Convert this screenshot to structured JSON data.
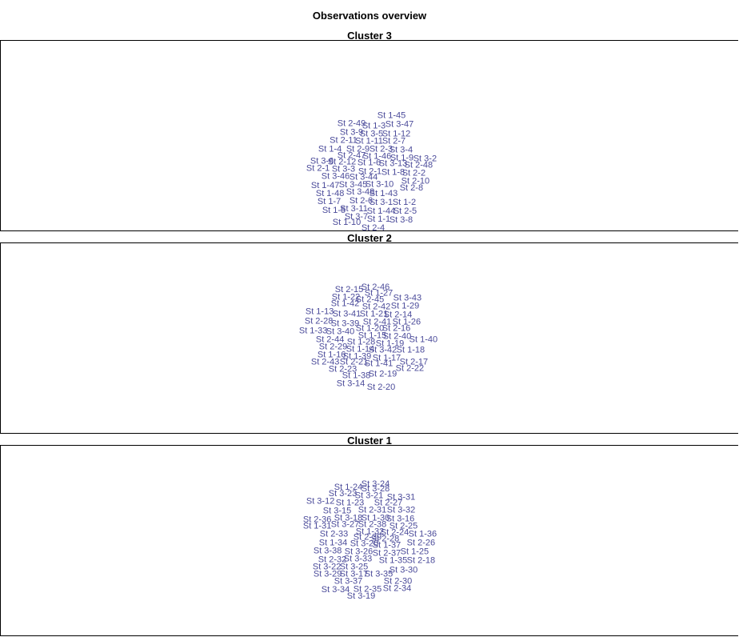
{
  "title": "Observations overview",
  "colors": {
    "label": "#4b4b9a"
  },
  "chart_data": [
    {
      "type": "scatter",
      "title": "Cluster 3",
      "xlim": [
        0,
        924
      ],
      "ylim": [
        0,
        240
      ],
      "points": [
        {
          "label": "St 1-45",
          "x": 490,
          "y": 146
        },
        {
          "label": "St 2-49",
          "x": 440,
          "y": 136
        },
        {
          "label": "St 1-3",
          "x": 468,
          "y": 133
        },
        {
          "label": "St 3-47",
          "x": 500,
          "y": 135
        },
        {
          "label": "St 3-9",
          "x": 440,
          "y": 125
        },
        {
          "label": "St 3-5",
          "x": 465,
          "y": 123
        },
        {
          "label": "St 1-12",
          "x": 496,
          "y": 123
        },
        {
          "label": "St 2-11",
          "x": 430,
          "y": 115
        },
        {
          "label": "St 1-11",
          "x": 462,
          "y": 114
        },
        {
          "label": "St 2-7",
          "x": 493,
          "y": 114
        },
        {
          "label": "St 1-4",
          "x": 413,
          "y": 104
        },
        {
          "label": "St 2-9",
          "x": 448,
          "y": 104
        },
        {
          "label": "St 2-3",
          "x": 477,
          "y": 104
        },
        {
          "label": "St 3-4",
          "x": 502,
          "y": 103
        },
        {
          "label": "St 2-47",
          "x": 440,
          "y": 96
        },
        {
          "label": "St 1-46",
          "x": 472,
          "y": 95
        },
        {
          "label": "St 1-9",
          "x": 503,
          "y": 93
        },
        {
          "label": "St 3-2",
          "x": 532,
          "y": 92
        },
        {
          "label": "St 3-6",
          "x": 403,
          "y": 89
        },
        {
          "label": "St 2-12",
          "x": 428,
          "y": 88
        },
        {
          "label": "St 1-6",
          "x": 462,
          "y": 87
        },
        {
          "label": "St 3-13",
          "x": 492,
          "y": 86
        },
        {
          "label": "St 2-48",
          "x": 524,
          "y": 84
        },
        {
          "label": "St 2-1",
          "x": 398,
          "y": 80
        },
        {
          "label": "St 3-3",
          "x": 430,
          "y": 79
        },
        {
          "label": "St 2-1",
          "x": 463,
          "y": 76
        },
        {
          "label": "St 1-8",
          "x": 492,
          "y": 75
        },
        {
          "label": "St 2-2",
          "x": 518,
          "y": 74
        },
        {
          "label": "St 3-46",
          "x": 420,
          "y": 70
        },
        {
          "label": "St 3-44",
          "x": 455,
          "y": 69
        },
        {
          "label": "St 2-10",
          "x": 520,
          "y": 64
        },
        {
          "label": "St 3-10",
          "x": 475,
          "y": 60
        },
        {
          "label": "St 1-47",
          "x": 407,
          "y": 58
        },
        {
          "label": "St 3-45",
          "x": 442,
          "y": 59
        },
        {
          "label": "St 2-8",
          "x": 515,
          "y": 55
        },
        {
          "label": "St 1-48",
          "x": 413,
          "y": 48
        },
        {
          "label": "St 3-48",
          "x": 451,
          "y": 50
        },
        {
          "label": "St 1-43",
          "x": 480,
          "y": 48
        },
        {
          "label": "St 1-7",
          "x": 412,
          "y": 38
        },
        {
          "label": "St 2-6",
          "x": 452,
          "y": 39
        },
        {
          "label": "St 3-1",
          "x": 477,
          "y": 37
        },
        {
          "label": "St 1-2",
          "x": 506,
          "y": 37
        },
        {
          "label": "St 1-5",
          "x": 418,
          "y": 27
        },
        {
          "label": "St 3-11",
          "x": 443,
          "y": 29
        },
        {
          "label": "St 1-44",
          "x": 477,
          "y": 26
        },
        {
          "label": "St 2-5",
          "x": 507,
          "y": 26
        },
        {
          "label": "St 3-7",
          "x": 446,
          "y": 19
        },
        {
          "label": "St 1-1",
          "x": 474,
          "y": 16
        },
        {
          "label": "St 3-8",
          "x": 502,
          "y": 15
        },
        {
          "label": "St 1-10",
          "x": 434,
          "y": 12
        },
        {
          "label": "St 2-4",
          "x": 467,
          "y": 5
        }
      ]
    },
    {
      "type": "scatter",
      "title": "Cluster 2",
      "xlim": [
        0,
        924
      ],
      "ylim": [
        0,
        240
      ],
      "points": [
        {
          "label": "St 2-46",
          "x": 470,
          "y": 185
        },
        {
          "label": "St 2-15",
          "x": 437,
          "y": 182
        },
        {
          "label": "St 1-27",
          "x": 474,
          "y": 177
        },
        {
          "label": "St 1-22",
          "x": 433,
          "y": 172
        },
        {
          "label": "St 2-45",
          "x": 463,
          "y": 169
        },
        {
          "label": "St 3-43",
          "x": 510,
          "y": 171
        },
        {
          "label": "St 1-42",
          "x": 432,
          "y": 164
        },
        {
          "label": "St 2-42",
          "x": 471,
          "y": 160
        },
        {
          "label": "St 1-29",
          "x": 507,
          "y": 161
        },
        {
          "label": "St 1-13",
          "x": 400,
          "y": 154
        },
        {
          "label": "St 3-41",
          "x": 434,
          "y": 151
        },
        {
          "label": "St 1-21",
          "x": 468,
          "y": 151
        },
        {
          "label": "St 2-14",
          "x": 498,
          "y": 150
        },
        {
          "label": "St 2-28",
          "x": 399,
          "y": 142
        },
        {
          "label": "St 3-39",
          "x": 432,
          "y": 139
        },
        {
          "label": "St 2-41",
          "x": 472,
          "y": 141
        },
        {
          "label": "St 1-26",
          "x": 509,
          "y": 141
        },
        {
          "label": "St 1-33",
          "x": 392,
          "y": 130
        },
        {
          "label": "St 3-40",
          "x": 426,
          "y": 129
        },
        {
          "label": "St 1-20",
          "x": 463,
          "y": 133
        },
        {
          "label": "St 2-16",
          "x": 496,
          "y": 133
        },
        {
          "label": "St 1-15",
          "x": 466,
          "y": 124
        },
        {
          "label": "St 2-40",
          "x": 497,
          "y": 123
        },
        {
          "label": "St 1-40",
          "x": 530,
          "y": 119
        },
        {
          "label": "St 2-44",
          "x": 413,
          "y": 119
        },
        {
          "label": "St 1-28",
          "x": 452,
          "y": 116
        },
        {
          "label": "St 1-19",
          "x": 488,
          "y": 114
        },
        {
          "label": "St 2-29",
          "x": 417,
          "y": 110
        },
        {
          "label": "St 1-14",
          "x": 451,
          "y": 107
        },
        {
          "label": "St 3-42",
          "x": 479,
          "y": 106
        },
        {
          "label": "St 1-18",
          "x": 514,
          "y": 106
        },
        {
          "label": "St 1-16",
          "x": 415,
          "y": 100
        },
        {
          "label": "St 1-39",
          "x": 447,
          "y": 98
        },
        {
          "label": "St 1-17",
          "x": 484,
          "y": 96
        },
        {
          "label": "St 2-43",
          "x": 407,
          "y": 91
        },
        {
          "label": "St 2-21",
          "x": 443,
          "y": 91
        },
        {
          "label": "St 1-41",
          "x": 474,
          "y": 89
        },
        {
          "label": "St 2-17",
          "x": 518,
          "y": 91
        },
        {
          "label": "St 2-22",
          "x": 513,
          "y": 83
        },
        {
          "label": "St 2-23",
          "x": 429,
          "y": 82
        },
        {
          "label": "St 1-38",
          "x": 446,
          "y": 74
        },
        {
          "label": "St 2-19",
          "x": 479,
          "y": 76
        },
        {
          "label": "St 3-14",
          "x": 439,
          "y": 64
        },
        {
          "label": "St 2-20",
          "x": 477,
          "y": 59
        }
      ]
    },
    {
      "type": "scatter",
      "title": "Cluster 1",
      "xlim": [
        0,
        924
      ],
      "ylim": [
        0,
        240
      ],
      "points": [
        {
          "label": "St 3-24",
          "x": 470,
          "y": 192
        },
        {
          "label": "St 1-24",
          "x": 436,
          "y": 188
        },
        {
          "label": "St 3-28",
          "x": 470,
          "y": 186
        },
        {
          "label": "St 3-23",
          "x": 429,
          "y": 180
        },
        {
          "label": "St 3-21",
          "x": 462,
          "y": 177
        },
        {
          "label": "St 3-31",
          "x": 502,
          "y": 175
        },
        {
          "label": "St 3-12",
          "x": 401,
          "y": 170
        },
        {
          "label": "St 1-23",
          "x": 438,
          "y": 168
        },
        {
          "label": "St 2-27",
          "x": 486,
          "y": 168
        },
        {
          "label": "St 3-15",
          "x": 422,
          "y": 158
        },
        {
          "label": "St 2-31",
          "x": 466,
          "y": 159
        },
        {
          "label": "St 3-32",
          "x": 502,
          "y": 159
        },
        {
          "label": "St 2-36",
          "x": 397,
          "y": 147
        },
        {
          "label": "St 3-18",
          "x": 436,
          "y": 149
        },
        {
          "label": "St 1-30",
          "x": 470,
          "y": 149
        },
        {
          "label": "St 3-16",
          "x": 501,
          "y": 148
        },
        {
          "label": "St 1-31",
          "x": 397,
          "y": 139
        },
        {
          "label": "St 3-27",
          "x": 432,
          "y": 141
        },
        {
          "label": "St 2-38",
          "x": 466,
          "y": 141
        },
        {
          "label": "St 2-25",
          "x": 505,
          "y": 139
        },
        {
          "label": "St 1-32",
          "x": 463,
          "y": 132
        },
        {
          "label": "St 2-24",
          "x": 494,
          "y": 131
        },
        {
          "label": "St 1-36",
          "x": 529,
          "y": 129
        },
        {
          "label": "St 2-33",
          "x": 418,
          "y": 129
        },
        {
          "label": "St 2-39",
          "x": 460,
          "y": 125
        },
        {
          "label": "St 2-28",
          "x": 482,
          "y": 123
        },
        {
          "label": "St 1-34",
          "x": 417,
          "y": 118
        },
        {
          "label": "St 3-20",
          "x": 456,
          "y": 117
        },
        {
          "label": "St 1-37",
          "x": 484,
          "y": 115
        },
        {
          "label": "St 2-26",
          "x": 527,
          "y": 118
        },
        {
          "label": "St 3-38",
          "x": 410,
          "y": 108
        },
        {
          "label": "St 3-26",
          "x": 449,
          "y": 107
        },
        {
          "label": "St 2-37",
          "x": 484,
          "y": 105
        },
        {
          "label": "St 1-25",
          "x": 519,
          "y": 107
        },
        {
          "label": "St 2-32",
          "x": 416,
          "y": 97
        },
        {
          "label": "St 3-33",
          "x": 448,
          "y": 98
        },
        {
          "label": "St 1-35",
          "x": 492,
          "y": 96
        },
        {
          "label": "St 2-18",
          "x": 527,
          "y": 96
        },
        {
          "label": "St 3-22",
          "x": 409,
          "y": 88
        },
        {
          "label": "St 3-25",
          "x": 443,
          "y": 88
        },
        {
          "label": "St 3-30",
          "x": 505,
          "y": 84
        },
        {
          "label": "St 3-29",
          "x": 410,
          "y": 79
        },
        {
          "label": "St 3-17",
          "x": 443,
          "y": 79
        },
        {
          "label": "St 3-35",
          "x": 474,
          "y": 79
        },
        {
          "label": "St 3-37",
          "x": 436,
          "y": 70
        },
        {
          "label": "St 2-30",
          "x": 498,
          "y": 70
        },
        {
          "label": "St 3-34",
          "x": 420,
          "y": 59
        },
        {
          "label": "St 2-35",
          "x": 460,
          "y": 60
        },
        {
          "label": "St 2-34",
          "x": 497,
          "y": 61
        },
        {
          "label": "St 3-19",
          "x": 452,
          "y": 51
        }
      ]
    }
  ]
}
